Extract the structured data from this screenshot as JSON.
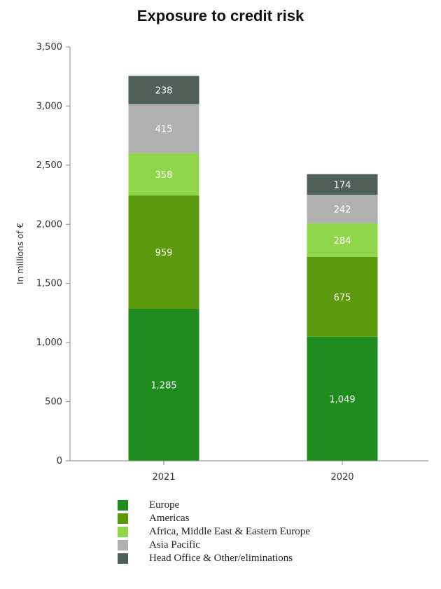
{
  "chart_data": {
    "type": "bar",
    "stacked": true,
    "title": "Exposure to credit risk",
    "ylabel": "In millions of €",
    "xlabel": "",
    "ylim": [
      0,
      3500
    ],
    "yticks": [
      0,
      500,
      1000,
      1500,
      2000,
      2500,
      3000,
      3500
    ],
    "ytick_labels": [
      "0",
      "500",
      "1,000",
      "1,500",
      "2,000",
      "2,500",
      "3,000",
      "3,500"
    ],
    "categories": [
      "2021",
      "2020"
    ],
    "legend_position": "bottom",
    "series": [
      {
        "name": "Europe",
        "color": "#1e8c1e",
        "values": [
          1285,
          1049
        ],
        "labels": [
          "1,285",
          "1,049"
        ]
      },
      {
        "name": "Americas",
        "color": "#5c9a0d",
        "values": [
          959,
          675
        ],
        "labels": [
          "959",
          "675"
        ]
      },
      {
        "name": "Africa, Middle East & Eastern Europe",
        "color": "#8fd64a",
        "values": [
          358,
          284
        ],
        "labels": [
          "358",
          "284"
        ]
      },
      {
        "name": "Asia Pacific",
        "color": "#b0b0b0",
        "values": [
          415,
          242
        ],
        "labels": [
          "415",
          "242"
        ]
      },
      {
        "name": "Head Office & Other/eliminations",
        "color": "#4e5f58",
        "values": [
          238,
          174
        ],
        "labels": [
          "238",
          "174"
        ]
      }
    ]
  }
}
